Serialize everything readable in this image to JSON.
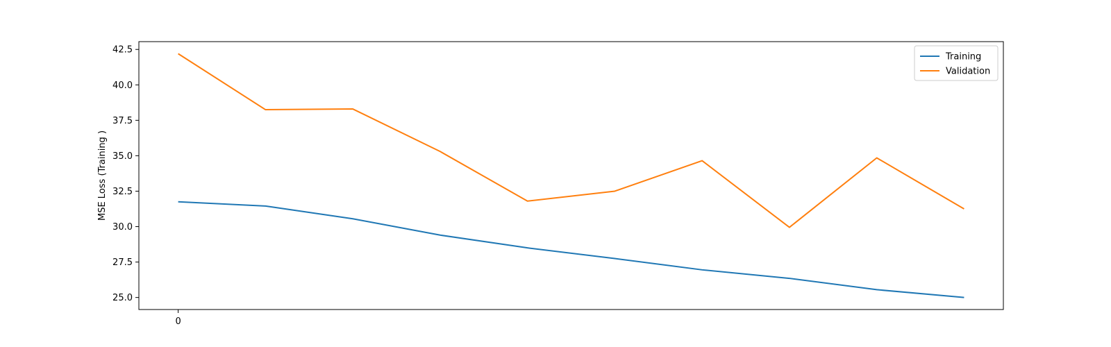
{
  "chart_data": {
    "type": "line",
    "x": [
      0,
      1,
      2,
      3,
      4,
      5,
      6,
      7,
      8,
      9
    ],
    "x_tick_labels": [
      {
        "value": 0,
        "label": "0"
      }
    ],
    "xlim": [
      -0.45,
      9.45
    ],
    "ylim": [
      24.15,
      43.05
    ],
    "y_ticks": [
      25.0,
      27.5,
      30.0,
      32.5,
      35.0,
      37.5,
      40.0,
      42.5
    ],
    "y_tick_labels": [
      "25.0",
      "27.5",
      "30.0",
      "32.5",
      "35.0",
      "37.5",
      "40.0",
      "42.5"
    ],
    "title": "",
    "xlabel": "",
    "ylabel": "MSE Loss (Training )",
    "grid": false,
    "legend_position": "top-right",
    "series": [
      {
        "name": "Training",
        "color": "#1f77b4",
        "values": [
          31.75,
          31.45,
          30.55,
          29.4,
          28.5,
          27.75,
          26.95,
          26.35,
          25.55,
          25.0
        ]
      },
      {
        "name": "Validation",
        "color": "#ff7f0e",
        "values": [
          42.2,
          38.25,
          38.3,
          35.3,
          31.8,
          32.5,
          34.65,
          29.95,
          34.85,
          31.25
        ]
      }
    ]
  }
}
